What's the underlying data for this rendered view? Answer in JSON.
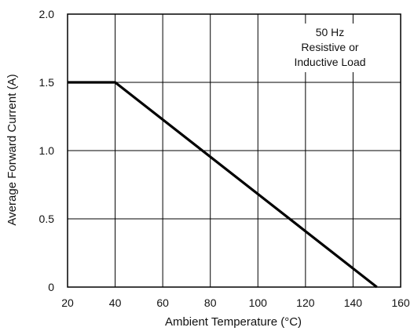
{
  "chart_data": {
    "type": "line",
    "title": "",
    "xlabel": "Ambient Temperature (°C)",
    "ylabel": "Average Forward Current (A)",
    "xlim": [
      20,
      160
    ],
    "ylim": [
      0,
      2.0
    ],
    "x_ticks": [
      20,
      40,
      60,
      80,
      100,
      120,
      140,
      160
    ],
    "x_tick_labels": [
      "20",
      "40",
      "60",
      "80",
      "100",
      "120",
      "140",
      "160"
    ],
    "y_ticks": [
      0,
      0.5,
      1.0,
      1.5,
      2.0
    ],
    "y_tick_labels": [
      "0",
      "0.5",
      "1.0",
      "1.5",
      "2.0"
    ],
    "grid": true,
    "annotation_lines": [
      "50 Hz",
      "Resistive or",
      "Inductive Load"
    ],
    "series": [
      {
        "x": [
          20,
          40,
          150
        ],
        "y": [
          1.5,
          1.5,
          0
        ],
        "color": "#000000"
      }
    ]
  }
}
